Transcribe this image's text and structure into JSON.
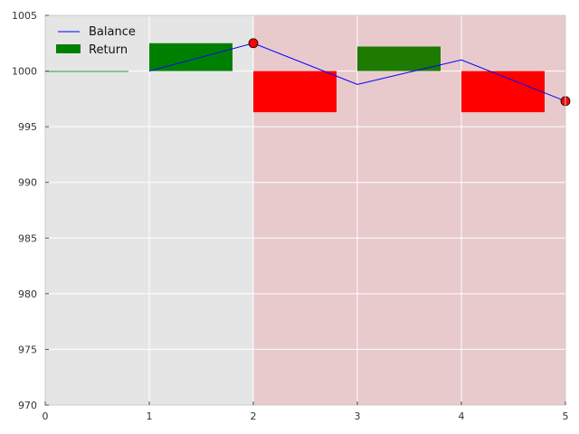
{
  "chart_data": {
    "type": "bar",
    "title": "",
    "xlabel": "",
    "ylabel": "",
    "xlim": [
      0,
      5
    ],
    "ylim": [
      970,
      1005
    ],
    "grid": true,
    "legend_position": "top-left",
    "x_ticks": [
      0,
      1,
      2,
      3,
      4,
      5
    ],
    "y_ticks": [
      970,
      975,
      980,
      985,
      990,
      995,
      1000,
      1005
    ],
    "background_regions": [
      {
        "x_start": 0,
        "x_end": 2,
        "color": "#e5e5e5"
      },
      {
        "x_start": 2,
        "x_end": 5,
        "color": "#e8cacc"
      }
    ],
    "series": [
      {
        "name": "Balance",
        "type": "line",
        "color": "#0000ff",
        "x": [
          1,
          2,
          3,
          4,
          5
        ],
        "y": [
          1000.0,
          1002.5,
          998.8,
          1001.0,
          997.3
        ]
      },
      {
        "name": "Return",
        "type": "bar",
        "baseline": 1000,
        "bar_width": 0.8,
        "x": [
          0,
          1,
          2,
          3,
          4
        ],
        "values": [
          0,
          2.5,
          -3.7,
          2.2,
          -3.7
        ],
        "colors": [
          "#008000",
          "#008000",
          "#ff0000",
          "#1e7a00",
          "#ff0000"
        ]
      }
    ],
    "markers": [
      {
        "x": 2,
        "y": 1002.5,
        "color": "#ff0000"
      },
      {
        "x": 5,
        "y": 997.3,
        "color": "#ff0000"
      }
    ]
  }
}
